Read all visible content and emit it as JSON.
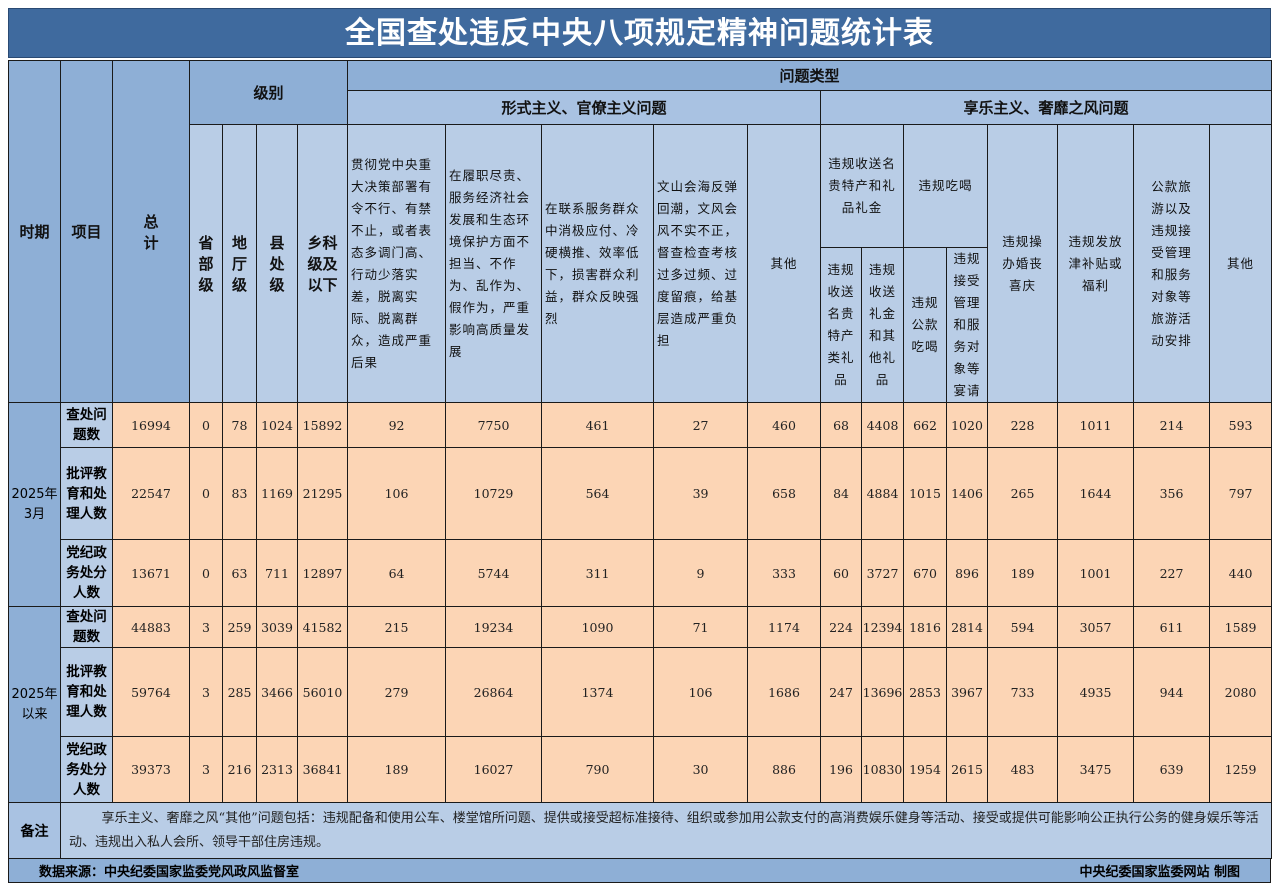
{
  "title": "全国查处违反中央八项规定精神问题统计表",
  "header": {
    "period": "时期",
    "item": "项目",
    "total": "总计",
    "level": "级别",
    "levels": [
      "省部级",
      "地厅级",
      "县处级",
      "乡科级及以下"
    ],
    "problem_type": "问题类型",
    "formalism": "形式主义、官僚主义问题",
    "hedonism": "享乐主义、奢靡之风问题",
    "formalism_items": [
      "贯彻党中央重大决策部署有令不行、有禁不止，或者表态多调门高、行动少落实差，脱离实际、脱离群众，造成严重后果",
      "在履职尽责、服务经济社会发展和生态环境保护方面不担当、不作为、乱作为、假作为，严重影响高质量发展",
      "在联系服务群众中消极应付、冷硬横推、效率低下，损害群众利益，群众反映强烈",
      "文山会海反弹回潮，文风会风不实不正，督查检查考核过多过频、过度留痕，给基层造成严重负担",
      "其他"
    ],
    "gifts": "违规收送名贵特产和礼品礼金",
    "gifts_sub": [
      "违规收送名贵特产类礼品",
      "违规收送礼金和其他礼品"
    ],
    "dining": "违规吃喝",
    "dining_sub": [
      "违规公款吃喝",
      "违规接受管理和服务对象等宴请"
    ],
    "hedonism_items": [
      "违规操办婚丧喜庆",
      "违规发放津补贴或福利",
      "公款旅游以及违规接受管理和服务对象等旅游活动安排",
      "其他"
    ]
  },
  "groups": [
    {
      "period": "2025年3月",
      "rows": [
        {
          "item": "查处问题数",
          "values": [
            16994,
            0,
            78,
            1024,
            15892,
            92,
            7750,
            461,
            27,
            460,
            68,
            4408,
            662,
            1020,
            228,
            1011,
            214,
            593
          ]
        },
        {
          "item": "批评教育和处理人数",
          "values": [
            22547,
            0,
            83,
            1169,
            21295,
            106,
            10729,
            564,
            39,
            658,
            84,
            4884,
            1015,
            1406,
            265,
            1644,
            356,
            797
          ]
        },
        {
          "item": "党纪政务处分人数",
          "values": [
            13671,
            0,
            63,
            711,
            12897,
            64,
            5744,
            311,
            9,
            333,
            60,
            3727,
            670,
            896,
            189,
            1001,
            227,
            440
          ]
        }
      ]
    },
    {
      "period": "2025年以来",
      "rows": [
        {
          "item": "查处问题数",
          "values": [
            44883,
            3,
            259,
            3039,
            41582,
            215,
            19234,
            1090,
            71,
            1174,
            224,
            12394,
            1816,
            2814,
            594,
            3057,
            611,
            1589
          ]
        },
        {
          "item": "批评教育和处理人数",
          "values": [
            59764,
            3,
            285,
            3466,
            56010,
            279,
            26864,
            1374,
            106,
            1686,
            247,
            13696,
            2853,
            3967,
            733,
            4935,
            944,
            2080
          ]
        },
        {
          "item": "党纪政务处分人数",
          "values": [
            39373,
            3,
            216,
            2313,
            36841,
            189,
            16027,
            790,
            30,
            886,
            196,
            10830,
            1954,
            2615,
            483,
            3475,
            639,
            1259
          ]
        }
      ]
    }
  ],
  "notes": {
    "label": "备注",
    "text": "享乐主义、奢靡之风“其他”问题包括：违规配备和使用公车、楼堂馆所问题、提供或接受超标准接待、组织或参加用公款支付的高消费娱乐健身等活动、接受或提供可能影响公正执行公务的健身娱乐等活动、违规出入私人会所、领导干部住房违规。"
  },
  "footer": {
    "source": "数据来源：中央纪委国家监委党风政风监督室",
    "credit": "中央纪委国家监委网站 制图"
  },
  "colors": {
    "header_dark": "#8eafd6",
    "header_light": "#b9cde6",
    "data_cell": "#fcd5b5",
    "title_bg": "#3f6a9e"
  }
}
